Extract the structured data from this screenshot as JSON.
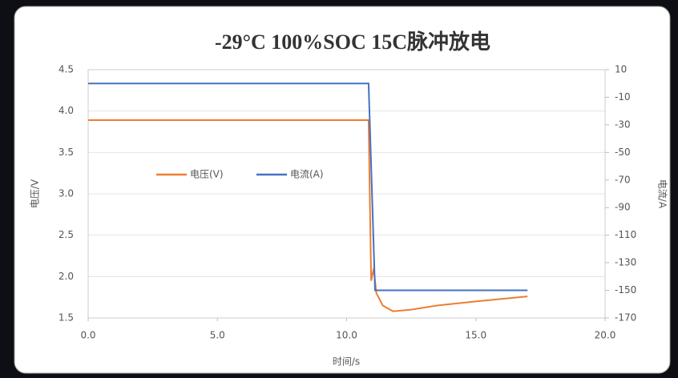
{
  "chart_data": {
    "type": "line",
    "title": "-29°C 100%SOC 15C脉冲放电",
    "xlabel": "时间/s",
    "ylabel": "电压/V",
    "y2label": "电流/A",
    "xlim": [
      0,
      20
    ],
    "xticks": [
      {
        "value": 0,
        "label": "0.0"
      },
      {
        "value": 5,
        "label": "5.0"
      },
      {
        "value": 10,
        "label": "10.0"
      },
      {
        "value": 15,
        "label": "15.0"
      },
      {
        "value": 20,
        "label": "20.0"
      }
    ],
    "ylim": [
      1.5,
      4.5
    ],
    "yticks": [
      1.5,
      {
        "value": 2,
        "label": "2.0"
      },
      2.5,
      {
        "value": 3,
        "label": "3.0"
      },
      3.5,
      {
        "value": 4,
        "label": "4.0"
      },
      4.5
    ],
    "y2lim": [
      -170,
      10
    ],
    "y2ticks": [
      -170,
      -150,
      -130,
      -110,
      -90,
      -70,
      -50,
      -30,
      -10,
      10
    ],
    "grid": true,
    "legend": "center-left",
    "series": [
      {
        "name": "电压(V)",
        "color": "#ed7d31",
        "x": [
          0,
          10.85,
          10.95,
          11.05,
          11.15,
          11.4,
          11.8,
          12.5,
          13.5,
          15,
          16,
          17
        ],
        "values": [
          3.89,
          3.89,
          1.95,
          2.1,
          1.8,
          1.65,
          1.58,
          1.6,
          1.65,
          1.7,
          1.73,
          1.76
        ]
      },
      {
        "name": "电流(A)",
        "color": "#4472c4",
        "axis": "y2",
        "x": [
          0,
          10.85,
          11.1,
          17
        ],
        "values": [
          0,
          0,
          -150,
          -150
        ]
      }
    ]
  }
}
